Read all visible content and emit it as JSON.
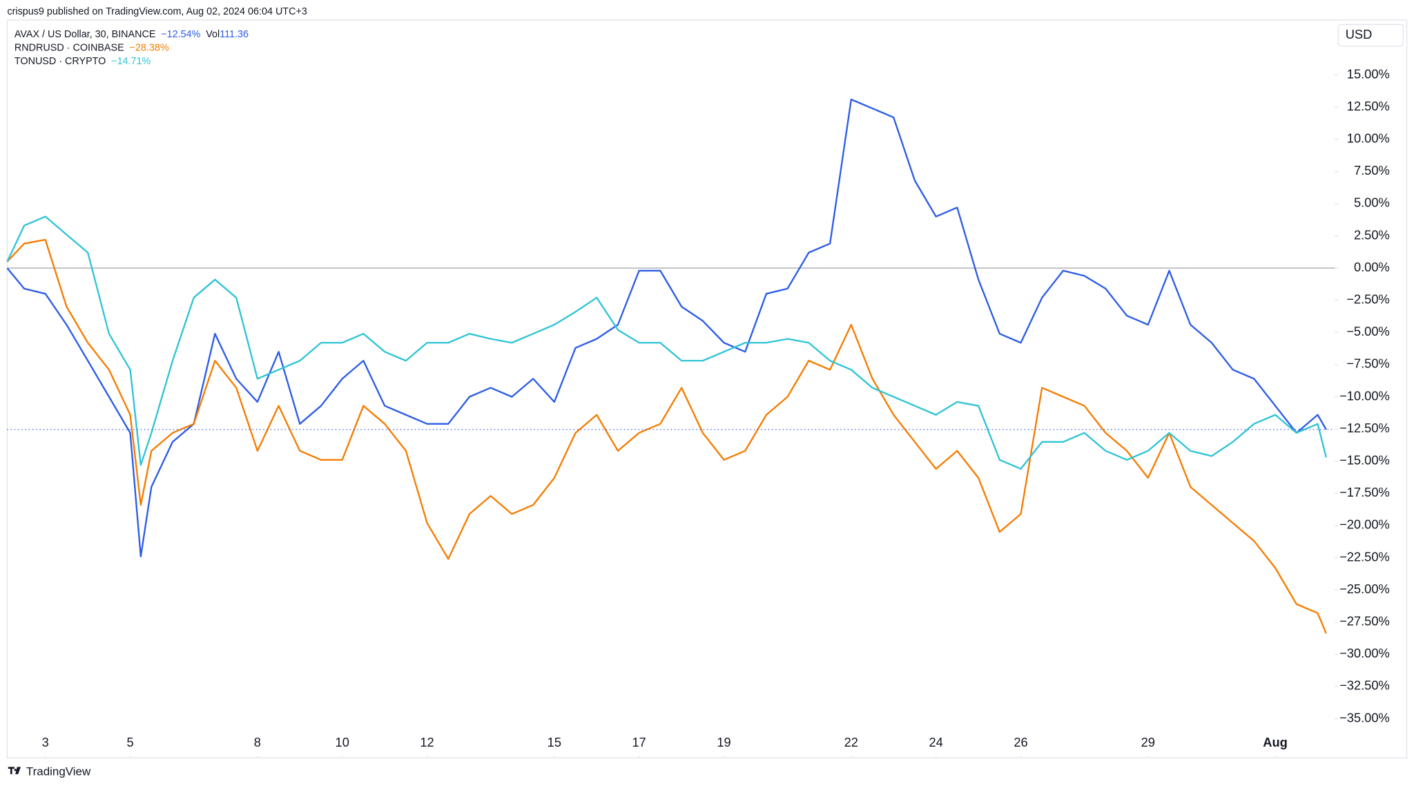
{
  "header": "crispus9 published on TradingView.com, Aug 02, 2024 06:04 UTC+3",
  "brand": "TradingView",
  "chart_data": {
    "type": "line",
    "currency": "USD",
    "volume_label": "Vol",
    "volume": 111.36,
    "x": [
      2.1,
      2.5,
      3,
      3.5,
      4,
      4.5,
      5,
      5.25,
      5.5,
      6,
      6.5,
      7,
      7.5,
      8,
      8.5,
      9,
      9.5,
      10,
      10.5,
      11,
      11.5,
      12,
      12.5,
      13,
      13.5,
      14,
      14.5,
      15,
      15.5,
      16,
      16.5,
      17,
      17.5,
      18,
      18.5,
      19,
      19.5,
      20,
      20.5,
      21,
      21.5,
      22,
      22.5,
      23,
      23.5,
      24,
      24.5,
      25,
      25.5,
      26,
      26.5,
      27,
      27.5,
      28,
      28.5,
      29,
      29.5,
      30,
      30.5,
      31,
      31.5,
      32,
      32.5,
      33,
      33.2
    ],
    "xlim": [
      2.1,
      33.4
    ],
    "xticks": [
      3,
      5,
      8,
      10,
      12,
      15,
      17,
      19,
      22,
      24,
      26,
      29,
      {
        "value": 32,
        "label": "Aug"
      }
    ],
    "ylim": [
      -37.91,
      19.06
    ],
    "yticks": [
      {
        "value": 15,
        "label": "15.00%"
      },
      {
        "value": 12.5,
        "label": "12.50%"
      },
      {
        "value": 10,
        "label": "10.00%"
      },
      {
        "value": 7.5,
        "label": "7.50%"
      },
      {
        "value": 5,
        "label": "5.00%"
      },
      {
        "value": 2.5,
        "label": "2.50%"
      },
      {
        "value": 0,
        "label": "0.00%"
      },
      {
        "value": -2.5,
        "label": "−2.50%"
      },
      {
        "value": -5,
        "label": "−5.00%"
      },
      {
        "value": -7.5,
        "label": "−7.50%"
      },
      {
        "value": -10,
        "label": "−10.00%"
      },
      {
        "value": -12.5,
        "label": "−12.50%"
      },
      {
        "value": -15,
        "label": "−15.00%"
      },
      {
        "value": -17.5,
        "label": "−17.50%"
      },
      {
        "value": -20,
        "label": "−20.00%"
      },
      {
        "value": -22.5,
        "label": "−22.50%"
      },
      {
        "value": -25,
        "label": "−25.00%"
      },
      {
        "value": -27.5,
        "label": "−27.50%"
      },
      {
        "value": -30,
        "label": "−30.00%"
      },
      {
        "value": -32.5,
        "label": "−32.50%"
      },
      {
        "value": -35,
        "label": "−35.00%"
      }
    ],
    "grid": false,
    "series": [
      {
        "name": "AVAX / US Dollar, 30, BINANCE",
        "color": "#2b5ce6",
        "change_label": "−12.54%",
        "values": [
          0,
          -1.6,
          -2.0,
          -4.4,
          -7.2,
          -10,
          -12.8,
          -22.4,
          -17,
          -13.5,
          -12.1,
          -5.1,
          -8.6,
          -10.4,
          -6.5,
          -12.1,
          -10.7,
          -8.6,
          -7.2,
          -10.7,
          -11.4,
          -12.1,
          -12.1,
          -10,
          -9.3,
          -10,
          -8.6,
          -10.4,
          -6.2,
          -5.5,
          -4.4,
          -0.2,
          -0.2,
          -3,
          -4.1,
          -5.8,
          -6.5,
          -2,
          -1.6,
          1.2,
          1.9,
          13.1,
          12.4,
          11.7,
          6.8,
          4,
          4.7,
          -0.9,
          -5.1,
          -5.8,
          -2.3,
          -0.2,
          -0.6,
          -1.6,
          -3.7,
          -4.4,
          -0.2,
          -4.4,
          -5.8,
          -7.9,
          -8.6,
          -10.7,
          -12.8,
          -11.4,
          -12.54
        ]
      },
      {
        "name": "RNDRUSD · COINBASE",
        "color": "#f57c00",
        "change_label": "−28.38%",
        "values": [
          0.5,
          1.9,
          2.2,
          -3,
          -5.8,
          -7.9,
          -11.4,
          -18.4,
          -14.2,
          -12.8,
          -12.1,
          -7.2,
          -9.3,
          -14.2,
          -10.7,
          -14.2,
          -14.9,
          -14.9,
          -10.7,
          -12.1,
          -14.2,
          -19.8,
          -22.6,
          -19.1,
          -17.7,
          -19.1,
          -18.4,
          -16.3,
          -12.8,
          -11.4,
          -14.2,
          -12.8,
          -12.1,
          -9.3,
          -12.8,
          -14.9,
          -14.2,
          -11.4,
          -10,
          -7.2,
          -7.9,
          -4.4,
          -8.6,
          -11.4,
          -13.5,
          -15.6,
          -14.2,
          -16.3,
          -20.5,
          -19.1,
          -9.3,
          -10,
          -10.7,
          -12.8,
          -14.2,
          -16.3,
          -12.8,
          -17,
          -18.4,
          -19.8,
          -21.2,
          -23.3,
          -26.1,
          -26.8,
          -28.38
        ]
      },
      {
        "name": "TONUSD · CRYPTO",
        "color": "#2ec4d6",
        "change_label": "−14.71%",
        "values": [
          0.5,
          3.3,
          4,
          2.6,
          1.2,
          -5.1,
          -7.9,
          -15.3,
          -12.8,
          -7.2,
          -2.3,
          -0.9,
          -2.3,
          -8.6,
          -7.9,
          -7.2,
          -5.8,
          -5.8,
          -5.1,
          -6.5,
          -7.2,
          -5.8,
          -5.8,
          -5.1,
          -5.5,
          -5.8,
          -5.1,
          -4.4,
          -3.4,
          -2.3,
          -4.8,
          -5.8,
          -5.8,
          -7.2,
          -7.2,
          -6.5,
          -5.8,
          -5.8,
          -5.5,
          -5.8,
          -7.2,
          -7.9,
          -9.3,
          -10,
          -10.7,
          -11.4,
          -10.4,
          -10.7,
          -14.9,
          -15.6,
          -13.5,
          -13.5,
          -12.8,
          -14.2,
          -14.9,
          -14.2,
          -12.8,
          -14.2,
          -14.6,
          -13.5,
          -12.1,
          -11.4,
          -12.8,
          -12.1,
          -14.71
        ]
      }
    ]
  }
}
